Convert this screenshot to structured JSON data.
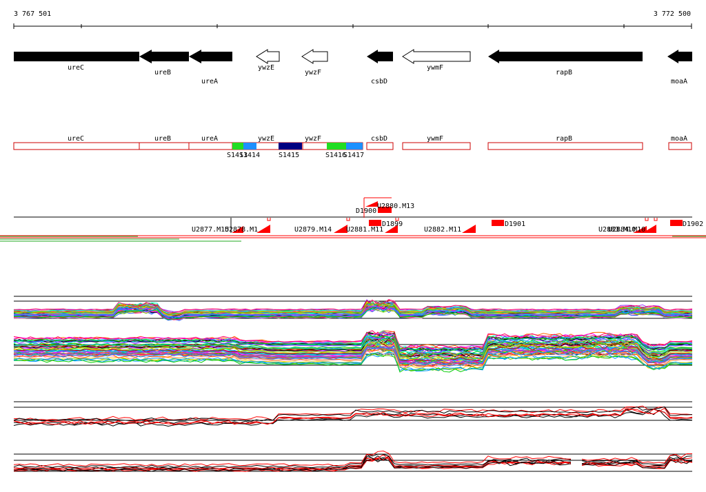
{
  "coords": {
    "start": "3 767 501",
    "end": "3 772 500"
  },
  "genes": [
    {
      "name": "ureC",
      "strand": "-",
      "filled": true
    },
    {
      "name": "ureB",
      "strand": "-",
      "filled": true
    },
    {
      "name": "ureA",
      "strand": "-",
      "filled": true
    },
    {
      "name": "ywzE",
      "strand": "-",
      "filled": false
    },
    {
      "name": "ywzF",
      "strand": "-",
      "filled": false
    },
    {
      "name": "csbD",
      "strand": "-",
      "filled": true
    },
    {
      "name": "ywmF",
      "strand": "-",
      "filled": false
    },
    {
      "name": "rapB",
      "strand": "-",
      "filled": true
    },
    {
      "name": "moaA",
      "strand": "-",
      "filled": true
    }
  ],
  "annotation_boxes": [
    {
      "name": "ureC"
    },
    {
      "name": "ureB"
    },
    {
      "name": "ureA"
    },
    {
      "name": "ywzE"
    },
    {
      "name": "ywzF"
    },
    {
      "name": "csbD"
    },
    {
      "name": "ywmF"
    },
    {
      "name": "rapB"
    },
    {
      "name": "moaA"
    }
  ],
  "segments": [
    {
      "label": "S1413",
      "color": "#22dd22"
    },
    {
      "label": "S1414",
      "color": "#1e90ff"
    },
    {
      "label": "S1415",
      "color": "#000080"
    },
    {
      "label": "S1416",
      "color": "#22dd22"
    },
    {
      "label": "S1417",
      "color": "#1e90ff"
    }
  ],
  "transcripts": [
    {
      "label": "D1900"
    },
    {
      "label": "U2880.M13"
    },
    {
      "label": "U2877.M15"
    },
    {
      "label": "U2878.M1"
    },
    {
      "label": "U2879.M14"
    },
    {
      "label": "U2881.M11"
    },
    {
      "label": "D1899"
    },
    {
      "label": "U2882.M11"
    },
    {
      "label": "D1901"
    },
    {
      "label": "U2883.M10"
    },
    {
      "label": "U2884.M10"
    },
    {
      "label": "D1902"
    }
  ],
  "colors": {
    "gene_fill": "#000000",
    "box_stroke": "#cc0000",
    "transcript": "#ff0000"
  }
}
